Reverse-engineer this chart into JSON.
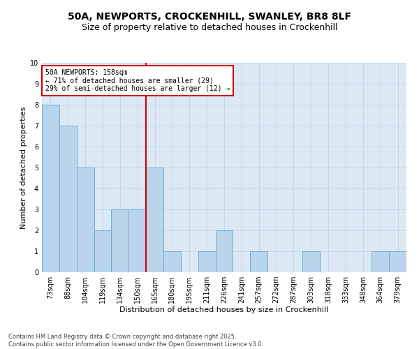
{
  "title": "50A, NEWPORTS, CROCKENHILL, SWANLEY, BR8 8LF",
  "subtitle": "Size of property relative to detached houses in Crockenhill",
  "xlabel": "Distribution of detached houses by size in Crockenhill",
  "ylabel": "Number of detached properties",
  "categories": [
    "73sqm",
    "88sqm",
    "104sqm",
    "119sqm",
    "134sqm",
    "150sqm",
    "165sqm",
    "180sqm",
    "195sqm",
    "211sqm",
    "226sqm",
    "241sqm",
    "257sqm",
    "272sqm",
    "287sqm",
    "303sqm",
    "318sqm",
    "333sqm",
    "348sqm",
    "364sqm",
    "379sqm"
  ],
  "values": [
    8,
    7,
    5,
    2,
    3,
    3,
    5,
    1,
    0,
    1,
    2,
    0,
    1,
    0,
    0,
    1,
    0,
    0,
    0,
    1,
    1
  ],
  "bar_color": "#bad4ec",
  "bar_edgecolor": "#6aaed6",
  "bar_linewidth": 0.7,
  "vline_color": "#cc0000",
  "annotation_text": "50A NEWPORTS: 158sqm\n← 71% of detached houses are smaller (29)\n29% of semi-detached houses are larger (12) →",
  "annotation_box_facecolor": "#ffffff",
  "annotation_box_edgecolor": "#cc0000",
  "ylim": [
    0,
    10
  ],
  "yticks": [
    0,
    1,
    2,
    3,
    4,
    5,
    6,
    7,
    8,
    9,
    10
  ],
  "grid_color": "#c5d8ec",
  "background_color": "#dce9f5",
  "footer_text": "Contains HM Land Registry data © Crown copyright and database right 2025.\nContains public sector information licensed under the Open Government Licence v3.0.",
  "title_fontsize": 10,
  "subtitle_fontsize": 9,
  "axis_label_fontsize": 8,
  "tick_fontsize": 7,
  "annotation_fontsize": 7,
  "footer_fontsize": 6
}
